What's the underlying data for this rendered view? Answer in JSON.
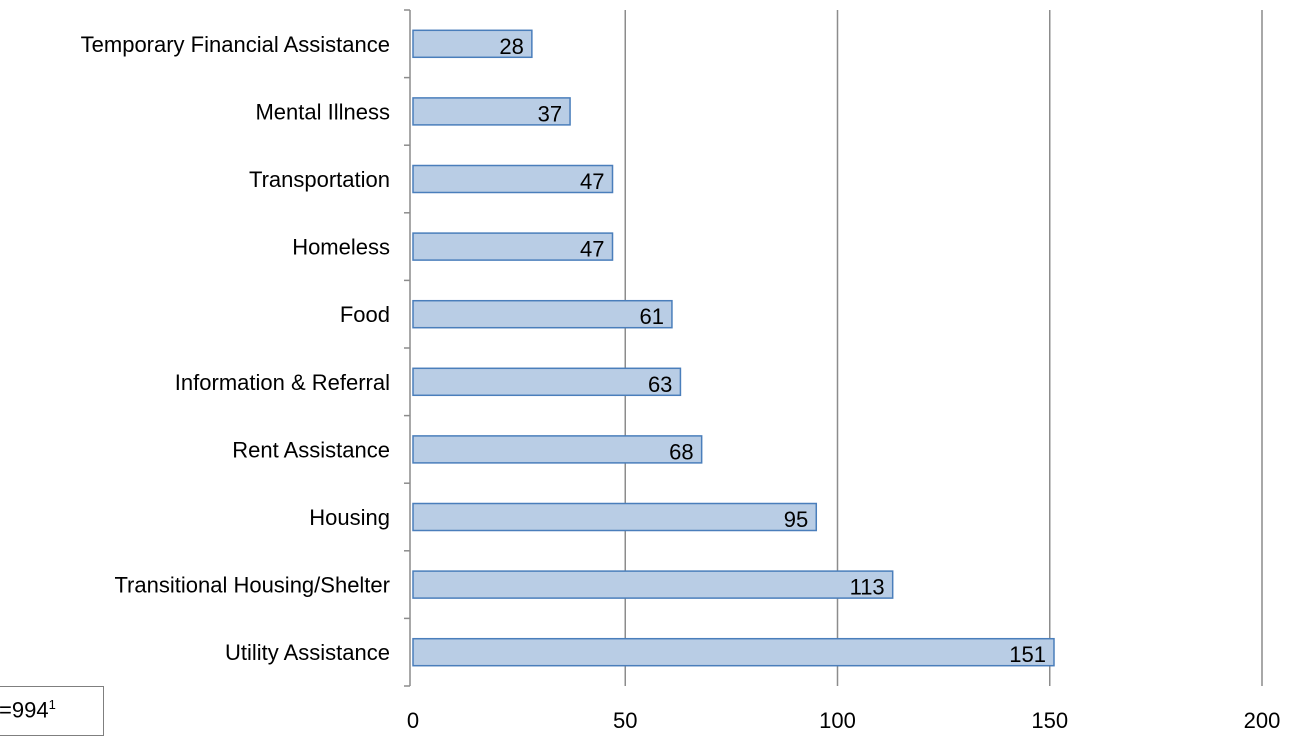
{
  "chart_data": {
    "type": "bar",
    "orientation": "horizontal",
    "categories": [
      "Temporary Financial Assistance",
      "Mental Illness",
      "Transportation",
      "Homeless",
      "Food",
      "Information & Referral",
      "Rent Assistance",
      "Housing",
      "Transitional Housing/Shelter",
      "Utility Assistance"
    ],
    "values": [
      28,
      37,
      47,
      47,
      61,
      63,
      68,
      95,
      113,
      151
    ],
    "xlim": [
      0,
      200
    ],
    "xticks": [
      0,
      50,
      100,
      150,
      200
    ],
    "grid": "vertical",
    "data_labels": true,
    "colors": {
      "bar_fill": "#b9cde5",
      "bar_stroke": "#4a7ebb",
      "grid": "#8c8c8c"
    }
  },
  "note": {
    "text": "=994",
    "superscript": "1"
  }
}
